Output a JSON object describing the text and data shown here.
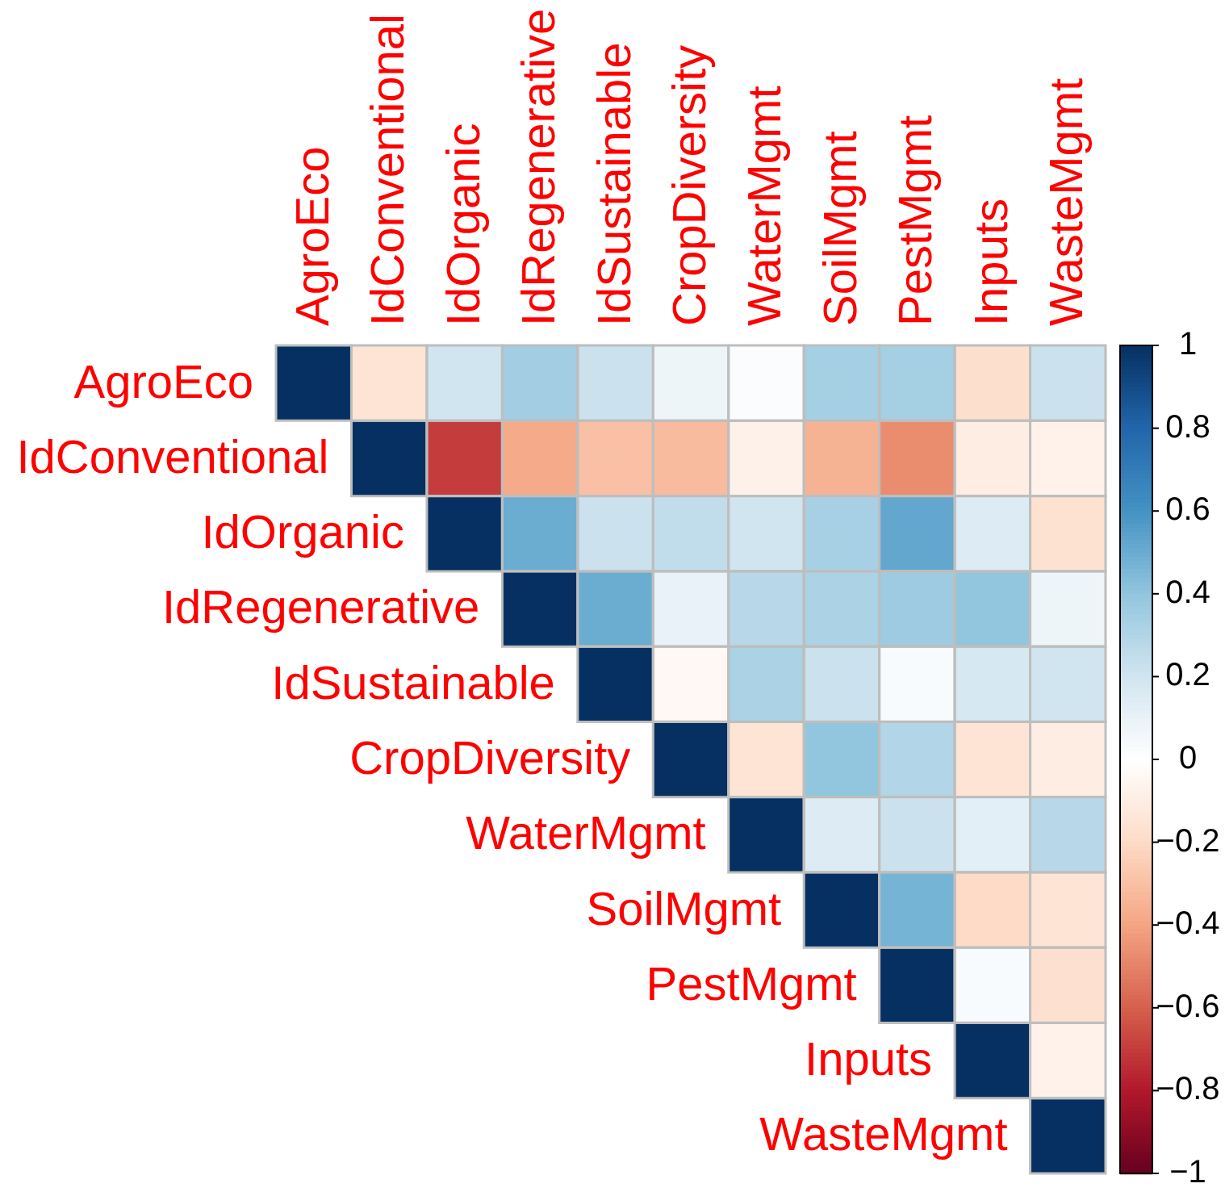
{
  "chart_data": {
    "type": "heatmap",
    "categories": [
      "AgroEco",
      "IdConventional",
      "IdOrganic",
      "IdRegenerative",
      "IdSustainable",
      "CropDiversity",
      "WaterMgmt",
      "SoilMgmt",
      "PestMgmt",
      "Inputs",
      "WasteMgmt"
    ],
    "y_categories": [
      "AgroEco",
      "IdConventional",
      "IdOrganic",
      "IdRegenerative",
      "IdSustainable",
      "CropDiversity",
      "WaterMgmt",
      "SoilMgmt",
      "PestMgmt",
      "Inputs",
      "WasteMgmt"
    ],
    "cells": [
      [
        1,
        -0.15,
        0.2,
        0.35,
        0.22,
        0.08,
        0.02,
        0.34,
        0.34,
        -0.18,
        0.22
      ],
      [
        null,
        1,
        -0.7,
        -0.38,
        -0.3,
        -0.32,
        -0.08,
        -0.35,
        -0.47,
        -0.1,
        -0.07
      ],
      [
        null,
        null,
        1,
        0.5,
        0.22,
        0.25,
        0.2,
        0.33,
        0.52,
        0.15,
        -0.16
      ],
      [
        null,
        null,
        null,
        1,
        0.5,
        0.1,
        0.28,
        0.32,
        0.36,
        0.4,
        0.08
      ],
      [
        null,
        null,
        null,
        null,
        1,
        -0.04,
        0.32,
        0.22,
        0.03,
        0.18,
        0.2
      ],
      [
        null,
        null,
        null,
        null,
        null,
        1,
        -0.15,
        0.4,
        0.3,
        -0.15,
        -0.1
      ],
      [
        null,
        null,
        null,
        null,
        null,
        null,
        1,
        0.15,
        0.22,
        0.12,
        0.28
      ],
      [
        null,
        null,
        null,
        null,
        null,
        null,
        null,
        1,
        0.47,
        -0.2,
        -0.15
      ],
      [
        null,
        null,
        null,
        null,
        null,
        null,
        null,
        null,
        1,
        0.03,
        -0.17
      ],
      [
        null,
        null,
        null,
        null,
        null,
        null,
        null,
        null,
        null,
        1,
        -0.07
      ],
      [
        null,
        null,
        null,
        null,
        null,
        null,
        null,
        null,
        null,
        null,
        1
      ]
    ],
    "clim": [
      -1,
      1
    ],
    "cticks": [
      {
        "value": -1,
        "label": "−1"
      },
      {
        "value": -0.8,
        "label": "−0.8"
      },
      {
        "value": -0.6,
        "label": "−0.6"
      },
      {
        "value": -0.4,
        "label": "−0.4"
      },
      {
        "value": -0.2,
        "label": "−0.2"
      },
      0,
      0.2,
      0.4,
      0.6,
      0.8,
      1
    ]
  }
}
